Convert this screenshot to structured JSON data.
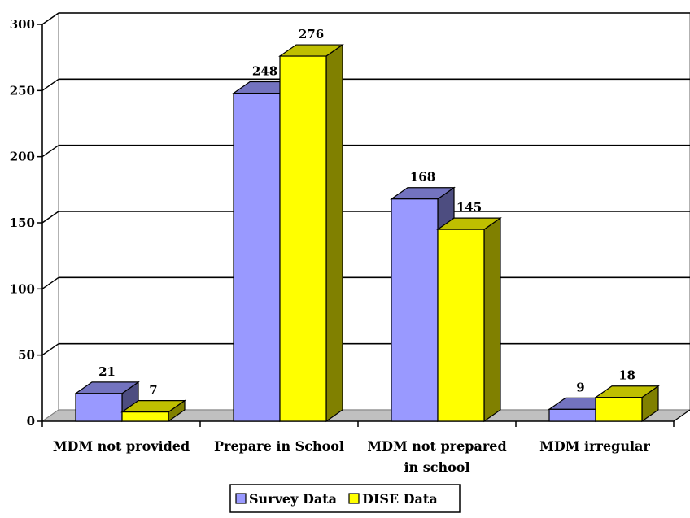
{
  "chart_data": {
    "type": "bar",
    "categories": [
      [
        "MDM not provided"
      ],
      [
        "Prepare in School"
      ],
      [
        "MDM not prepared",
        "in school"
      ],
      [
        "MDM irregular"
      ]
    ],
    "series": [
      {
        "name": "Survey Data",
        "values": [
          21,
          248,
          168,
          9
        ],
        "color": "#9999FF"
      },
      {
        "name": "DISE Data",
        "values": [
          7,
          276,
          145,
          18
        ],
        "color": "#FFFF00"
      }
    ],
    "ylim": [
      0,
      300
    ],
    "yticks": [
      0,
      50,
      100,
      150,
      200,
      250,
      300
    ],
    "grid": true,
    "legend_position": "bottom"
  }
}
